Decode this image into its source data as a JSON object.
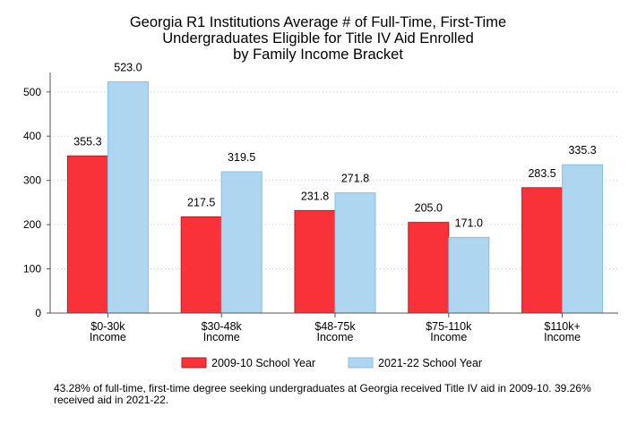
{
  "chart_data": {
    "type": "bar",
    "title_lines": [
      "Georgia R1 Institutions Average # of Full-Time, First-Time",
      "Undergraduates Eligible for Title IV Aid Enrolled",
      "by Family Income Bracket"
    ],
    "categories": [
      [
        "$0-30k",
        "Income"
      ],
      [
        "$30-48k",
        "Income"
      ],
      [
        "$48-75k",
        "Income"
      ],
      [
        "$75-110k",
        "Income"
      ],
      [
        "$110k+",
        "Income"
      ]
    ],
    "series": [
      {
        "name": "2009-10 School Year",
        "color": "#f83238",
        "stroke": "#b21e22",
        "values": [
          355.3,
          217.5,
          231.8,
          205.0,
          283.5
        ],
        "labels": [
          "355.3",
          "217.5",
          "231.8",
          "205.0",
          "283.5"
        ]
      },
      {
        "name": "2021-22 School Year",
        "color": "#afd6f1",
        "stroke": "#86bde6",
        "values": [
          523.0,
          319.5,
          271.8,
          171.0,
          335.3
        ],
        "labels": [
          "523.0",
          "319.5",
          "271.8",
          "171.0",
          "335.3"
        ]
      }
    ],
    "ylim": [
      0,
      540
    ],
    "yticks": [
      0,
      100,
      200,
      300,
      400,
      500
    ],
    "grid": "horizontal dotted",
    "legend": "bottom"
  },
  "footnote": "43.28% of full-time, first-time degree seeking undergraduates at Georgia received Title IV aid in 2009-10. 39.26% received aid in 2021-22."
}
